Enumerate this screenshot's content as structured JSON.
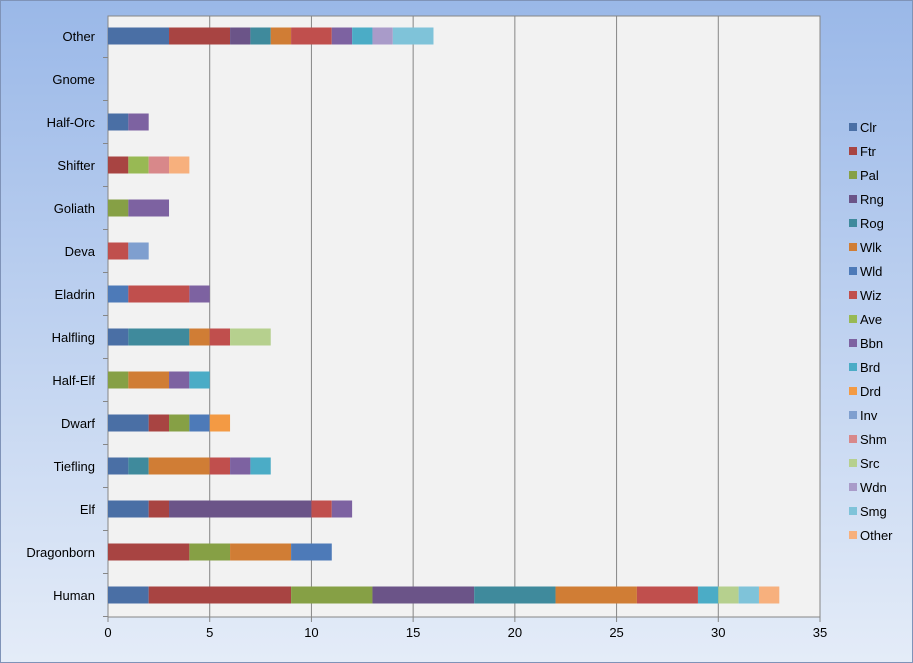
{
  "chart_data": {
    "type": "bar",
    "orientation": "horizontal",
    "stacked": true,
    "categories": [
      "Human",
      "Dragonborn",
      "Elf",
      "Tiefling",
      "Dwarf",
      "Half-Elf",
      "Halfling",
      "Eladrin",
      "Deva",
      "Goliath",
      "Shifter",
      "Half-Orc",
      "Gnome",
      "Other"
    ],
    "xlim": [
      0,
      35
    ],
    "xticks": [
      0,
      5,
      10,
      15,
      20,
      25,
      30,
      35
    ],
    "grid": "vertical",
    "legend_position": "right",
    "series": [
      {
        "name": "Clr",
        "color": "#4a6fa5",
        "values": [
          2,
          0,
          2,
          1,
          2,
          0,
          1,
          0,
          0,
          0,
          0,
          1,
          0,
          3
        ]
      },
      {
        "name": "Ftr",
        "color": "#a84442",
        "values": [
          7,
          4,
          1,
          0,
          1,
          0,
          0,
          0,
          0,
          0,
          1,
          0,
          0,
          3
        ]
      },
      {
        "name": "Pal",
        "color": "#86a045",
        "values": [
          4,
          2,
          0,
          0,
          1,
          1,
          0,
          0,
          0,
          1,
          0,
          0,
          0,
          0
        ]
      },
      {
        "name": "Rng",
        "color": "#6b5488",
        "values": [
          5,
          0,
          7,
          0,
          0,
          0,
          0,
          0,
          0,
          0,
          0,
          0,
          0,
          1
        ]
      },
      {
        "name": "Rog",
        "color": "#3f8a9c",
        "values": [
          4,
          0,
          0,
          1,
          0,
          0,
          3,
          0,
          0,
          0,
          0,
          0,
          0,
          1
        ]
      },
      {
        "name": "Wlk",
        "color": "#d07d35",
        "values": [
          4,
          3,
          0,
          3,
          0,
          2,
          1,
          0,
          0,
          0,
          0,
          0,
          0,
          1
        ]
      },
      {
        "name": "Wld",
        "color": "#4d7ab8",
        "values": [
          0,
          2,
          0,
          0,
          1,
          0,
          0,
          1,
          0,
          0,
          0,
          0,
          0,
          0
        ]
      },
      {
        "name": "Wiz",
        "color": "#c04f4d",
        "values": [
          3,
          0,
          1,
          1,
          0,
          0,
          1,
          3,
          1,
          0,
          0,
          0,
          0,
          2
        ]
      },
      {
        "name": "Ave",
        "color": "#98b954",
        "values": [
          0,
          0,
          0,
          0,
          0,
          0,
          0,
          0,
          0,
          0,
          1,
          0,
          0,
          0
        ]
      },
      {
        "name": "Bbn",
        "color": "#7d62a1",
        "values": [
          0,
          0,
          1,
          1,
          0,
          1,
          0,
          1,
          0,
          2,
          0,
          1,
          0,
          1
        ]
      },
      {
        "name": "Brd",
        "color": "#4bacc6",
        "values": [
          1,
          0,
          0,
          1,
          0,
          1,
          0,
          0,
          0,
          0,
          0,
          0,
          0,
          1
        ]
      },
      {
        "name": "Drd",
        "color": "#f39a44",
        "values": [
          0,
          0,
          0,
          0,
          1,
          0,
          0,
          0,
          0,
          0,
          0,
          0,
          0,
          0
        ]
      },
      {
        "name": "Inv",
        "color": "#7f9fcf",
        "values": [
          0,
          0,
          0,
          0,
          0,
          0,
          0,
          0,
          1,
          0,
          0,
          0,
          0,
          0
        ]
      },
      {
        "name": "Shm",
        "color": "#d8888a",
        "values": [
          0,
          0,
          0,
          0,
          0,
          0,
          0,
          0,
          0,
          0,
          1,
          0,
          0,
          0
        ]
      },
      {
        "name": "Src",
        "color": "#b6d08e",
        "values": [
          1,
          0,
          0,
          0,
          0,
          0,
          2,
          0,
          0,
          0,
          0,
          0,
          0,
          0
        ]
      },
      {
        "name": "Wdn",
        "color": "#a99bc9",
        "values": [
          0,
          0,
          0,
          0,
          0,
          0,
          0,
          0,
          0,
          0,
          0,
          0,
          0,
          1
        ]
      },
      {
        "name": "Smg",
        "color": "#7fc3d9",
        "values": [
          1,
          0,
          0,
          0,
          0,
          0,
          0,
          0,
          0,
          0,
          0,
          0,
          0,
          2
        ]
      },
      {
        "name": "Other",
        "color": "#f7b07d",
        "values": [
          1,
          0,
          0,
          0,
          0,
          0,
          0,
          0,
          0,
          0,
          1,
          0,
          0,
          0
        ]
      }
    ]
  }
}
